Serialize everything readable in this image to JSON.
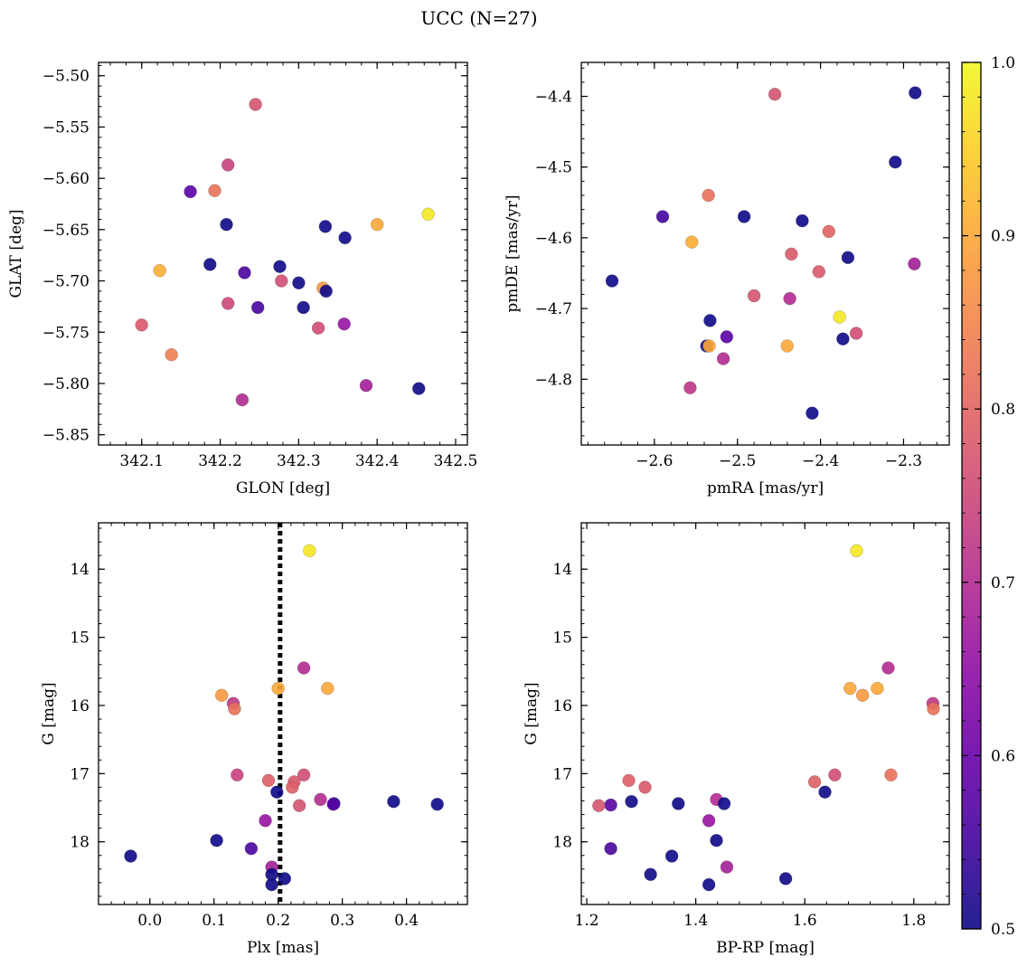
{
  "figure": {
    "title": "UCC (N=27)"
  },
  "colorbar": {
    "range": [
      0.5,
      1.0
    ],
    "ticks": [
      0.5,
      0.6,
      0.7,
      0.8,
      0.9,
      1.0
    ],
    "tick_labels": [
      "0.5",
      "0.6",
      "0.7",
      "0.8",
      "0.9",
      "1.0"
    ],
    "colormap": "plasma"
  },
  "chart_data": [
    {
      "type": "scatter",
      "xlabel": "GLON [deg]",
      "ylabel": "GLAT [deg]",
      "xlim": [
        342.045,
        342.515
      ],
      "ylim": [
        -5.86,
        -5.487
      ],
      "x_ticks": [
        342.1,
        342.2,
        342.3,
        342.4,
        342.5
      ],
      "x_tick_labels": [
        "342.1",
        "342.2",
        "342.3",
        "342.4",
        "342.5"
      ],
      "y_ticks": [
        -5.85,
        -5.8,
        -5.75,
        -5.7,
        -5.65,
        -5.6,
        -5.55,
        -5.5
      ],
      "y_tick_labels": [
        "−5.85",
        "−5.80",
        "−5.75",
        "−5.70",
        "−5.65",
        "−5.60",
        "−5.55",
        "−5.50"
      ],
      "y_inverted": false,
      "points": [
        {
          "x": 342.465,
          "y": -5.635,
          "c": 0.98
        },
        {
          "x": 342.245,
          "y": -5.528,
          "c": 0.77
        },
        {
          "x": 342.21,
          "y": -5.587,
          "c": 0.74
        },
        {
          "x": 342.162,
          "y": -5.613,
          "c": 0.58
        },
        {
          "x": 342.193,
          "y": -5.612,
          "c": 0.82
        },
        {
          "x": 342.208,
          "y": -5.645,
          "c": 0.5
        },
        {
          "x": 342.334,
          "y": -5.647,
          "c": 0.5
        },
        {
          "x": 342.359,
          "y": -5.658,
          "c": 0.5
        },
        {
          "x": 342.4,
          "y": -5.645,
          "c": 0.9
        },
        {
          "x": 342.187,
          "y": -5.684,
          "c": 0.5
        },
        {
          "x": 342.123,
          "y": -5.69,
          "c": 0.91
        },
        {
          "x": 342.231,
          "y": -5.692,
          "c": 0.56
        },
        {
          "x": 342.276,
          "y": -5.686,
          "c": 0.5
        },
        {
          "x": 342.278,
          "y": -5.7,
          "c": 0.76
        },
        {
          "x": 342.3,
          "y": -5.702,
          "c": 0.5
        },
        {
          "x": 342.331,
          "y": -5.707,
          "c": 0.88
        },
        {
          "x": 342.335,
          "y": -5.71,
          "c": 0.5
        },
        {
          "x": 342.21,
          "y": -5.722,
          "c": 0.75
        },
        {
          "x": 342.248,
          "y": -5.726,
          "c": 0.56
        },
        {
          "x": 342.306,
          "y": -5.726,
          "c": 0.5
        },
        {
          "x": 342.1,
          "y": -5.743,
          "c": 0.78
        },
        {
          "x": 342.358,
          "y": -5.742,
          "c": 0.66
        },
        {
          "x": 342.325,
          "y": -5.746,
          "c": 0.76
        },
        {
          "x": 342.138,
          "y": -5.772,
          "c": 0.84
        },
        {
          "x": 342.386,
          "y": -5.802,
          "c": 0.68
        },
        {
          "x": 342.453,
          "y": -5.805,
          "c": 0.5
        },
        {
          "x": 342.228,
          "y": -5.816,
          "c": 0.7
        }
      ]
    },
    {
      "type": "scatter",
      "xlabel": "pmRA [mas/yr]",
      "ylabel": "pmDE [mas/yr]",
      "xlim": [
        -2.688,
        -2.245
      ],
      "ylim": [
        -4.893,
        -4.352
      ],
      "x_ticks": [
        -2.6,
        -2.5,
        -2.4,
        -2.3
      ],
      "x_tick_labels": [
        "−2.6",
        "−2.5",
        "−2.4",
        "−2.3"
      ],
      "y_ticks": [
        -4.8,
        -4.7,
        -4.6,
        -4.5,
        -4.4
      ],
      "y_tick_labels": [
        "−4.8",
        "−4.7",
        "−4.6",
        "−4.5",
        "−4.4"
      ],
      "y_inverted": false,
      "points": [
        {
          "x": -2.455,
          "y": -4.397,
          "c": 0.77
        },
        {
          "x": -2.286,
          "y": -4.395,
          "c": 0.5
        },
        {
          "x": -2.31,
          "y": -4.493,
          "c": 0.5
        },
        {
          "x": -2.535,
          "y": -4.54,
          "c": 0.82
        },
        {
          "x": -2.59,
          "y": -4.57,
          "c": 0.55
        },
        {
          "x": -2.492,
          "y": -4.57,
          "c": 0.5
        },
        {
          "x": -2.422,
          "y": -4.576,
          "c": 0.5
        },
        {
          "x": -2.39,
          "y": -4.591,
          "c": 0.8
        },
        {
          "x": -2.555,
          "y": -4.606,
          "c": 0.91
        },
        {
          "x": -2.435,
          "y": -4.623,
          "c": 0.78
        },
        {
          "x": -2.367,
          "y": -4.628,
          "c": 0.5
        },
        {
          "x": -2.287,
          "y": -4.637,
          "c": 0.68
        },
        {
          "x": -2.402,
          "y": -4.648,
          "c": 0.78
        },
        {
          "x": -2.651,
          "y": -4.661,
          "c": 0.5
        },
        {
          "x": -2.48,
          "y": -4.682,
          "c": 0.77
        },
        {
          "x": -2.437,
          "y": -4.686,
          "c": 0.7
        },
        {
          "x": -2.377,
          "y": -4.712,
          "c": 0.98
        },
        {
          "x": -2.533,
          "y": -4.717,
          "c": 0.5
        },
        {
          "x": -2.357,
          "y": -4.735,
          "c": 0.76
        },
        {
          "x": -2.513,
          "y": -4.74,
          "c": 0.58
        },
        {
          "x": -2.373,
          "y": -4.743,
          "c": 0.5
        },
        {
          "x": -2.537,
          "y": -4.753,
          "c": 0.5
        },
        {
          "x": -2.534,
          "y": -4.753,
          "c": 0.9
        },
        {
          "x": -2.44,
          "y": -4.753,
          "c": 0.9
        },
        {
          "x": -2.517,
          "y": -4.771,
          "c": 0.7
        },
        {
          "x": -2.557,
          "y": -4.812,
          "c": 0.72
        },
        {
          "x": -2.41,
          "y": -4.848,
          "c": 0.5
        }
      ]
    },
    {
      "type": "scatter",
      "xlabel": "Plx [mas]",
      "ylabel": "G [mag]",
      "xlim": [
        -0.08,
        0.495
      ],
      "ylim": [
        18.92,
        13.32
      ],
      "x_ticks": [
        0.0,
        0.1,
        0.2,
        0.3,
        0.4
      ],
      "x_tick_labels": [
        "0.0",
        "0.1",
        "0.2",
        "0.3",
        "0.4"
      ],
      "y_ticks": [
        14,
        15,
        16,
        17,
        18
      ],
      "y_tick_labels": [
        "14",
        "15",
        "16",
        "17",
        "18"
      ],
      "y_inverted": true,
      "vline": 0.203,
      "points": [
        {
          "x": 0.249,
          "y": 13.73,
          "c": 0.98
        },
        {
          "x": 0.24,
          "y": 15.45,
          "c": 0.7
        },
        {
          "x": 0.2,
          "y": 15.75,
          "c": 0.9
        },
        {
          "x": 0.277,
          "y": 15.75,
          "c": 0.9
        },
        {
          "x": 0.112,
          "y": 15.85,
          "c": 0.88
        },
        {
          "x": 0.13,
          "y": 15.97,
          "c": 0.72
        },
        {
          "x": 0.132,
          "y": 16.05,
          "c": 0.82
        },
        {
          "x": 0.136,
          "y": 17.02,
          "c": 0.74
        },
        {
          "x": 0.24,
          "y": 17.02,
          "c": 0.76
        },
        {
          "x": 0.185,
          "y": 17.1,
          "c": 0.79
        },
        {
          "x": 0.225,
          "y": 17.12,
          "c": 0.78
        },
        {
          "x": 0.222,
          "y": 17.2,
          "c": 0.79
        },
        {
          "x": 0.198,
          "y": 17.27,
          "c": 0.5
        },
        {
          "x": 0.266,
          "y": 17.38,
          "c": 0.7
        },
        {
          "x": 0.38,
          "y": 17.41,
          "c": 0.5
        },
        {
          "x": 0.287,
          "y": 17.44,
          "c": 0.5
        },
        {
          "x": 0.286,
          "y": 17.45,
          "c": 0.58
        },
        {
          "x": 0.448,
          "y": 17.45,
          "c": 0.5
        },
        {
          "x": 0.233,
          "y": 17.47,
          "c": 0.77
        },
        {
          "x": 0.18,
          "y": 17.69,
          "c": 0.66
        },
        {
          "x": 0.104,
          "y": 17.98,
          "c": 0.5
        },
        {
          "x": 0.158,
          "y": 18.1,
          "c": 0.56
        },
        {
          "x": -0.03,
          "y": 18.21,
          "c": 0.5
        },
        {
          "x": 0.19,
          "y": 18.37,
          "c": 0.68
        },
        {
          "x": 0.19,
          "y": 18.48,
          "c": 0.5
        },
        {
          "x": 0.21,
          "y": 18.54,
          "c": 0.5
        },
        {
          "x": 0.19,
          "y": 18.63,
          "c": 0.5
        }
      ]
    },
    {
      "type": "scatter",
      "xlabel": "BP-RP [mag]",
      "ylabel": "G [mag]",
      "xlim": [
        1.19,
        1.865
      ],
      "ylim": [
        18.92,
        13.32
      ],
      "x_ticks": [
        1.2,
        1.4,
        1.6,
        1.8
      ],
      "x_tick_labels": [
        "1.2",
        "1.4",
        "1.6",
        "1.8"
      ],
      "y_ticks": [
        14,
        15,
        16,
        17,
        18
      ],
      "y_tick_labels": [
        "14",
        "15",
        "16",
        "17",
        "18"
      ],
      "y_inverted": true,
      "points": [
        {
          "x": 1.695,
          "y": 13.73,
          "c": 0.98
        },
        {
          "x": 1.753,
          "y": 15.45,
          "c": 0.7
        },
        {
          "x": 1.683,
          "y": 15.75,
          "c": 0.9
        },
        {
          "x": 1.733,
          "y": 15.75,
          "c": 0.9
        },
        {
          "x": 1.706,
          "y": 15.85,
          "c": 0.88
        },
        {
          "x": 1.835,
          "y": 15.97,
          "c": 0.72
        },
        {
          "x": 1.836,
          "y": 16.05,
          "c": 0.82
        },
        {
          "x": 1.758,
          "y": 17.02,
          "c": 0.82
        },
        {
          "x": 1.655,
          "y": 17.02,
          "c": 0.76
        },
        {
          "x": 1.277,
          "y": 17.1,
          "c": 0.79
        },
        {
          "x": 1.618,
          "y": 17.12,
          "c": 0.79
        },
        {
          "x": 1.307,
          "y": 17.2,
          "c": 0.78
        },
        {
          "x": 1.637,
          "y": 17.27,
          "c": 0.5
        },
        {
          "x": 1.438,
          "y": 17.38,
          "c": 0.7
        },
        {
          "x": 1.282,
          "y": 17.41,
          "c": 0.5
        },
        {
          "x": 1.368,
          "y": 17.44,
          "c": 0.5
        },
        {
          "x": 1.452,
          "y": 17.44,
          "c": 0.5
        },
        {
          "x": 1.244,
          "y": 17.46,
          "c": 0.58
        },
        {
          "x": 1.222,
          "y": 17.47,
          "c": 0.77
        },
        {
          "x": 1.424,
          "y": 17.69,
          "c": 0.66
        },
        {
          "x": 1.438,
          "y": 17.98,
          "c": 0.5
        },
        {
          "x": 1.244,
          "y": 18.1,
          "c": 0.56
        },
        {
          "x": 1.356,
          "y": 18.21,
          "c": 0.5
        },
        {
          "x": 1.457,
          "y": 18.37,
          "c": 0.68
        },
        {
          "x": 1.317,
          "y": 18.48,
          "c": 0.5
        },
        {
          "x": 1.565,
          "y": 18.54,
          "c": 0.5
        },
        {
          "x": 1.424,
          "y": 18.63,
          "c": 0.5
        }
      ]
    }
  ]
}
